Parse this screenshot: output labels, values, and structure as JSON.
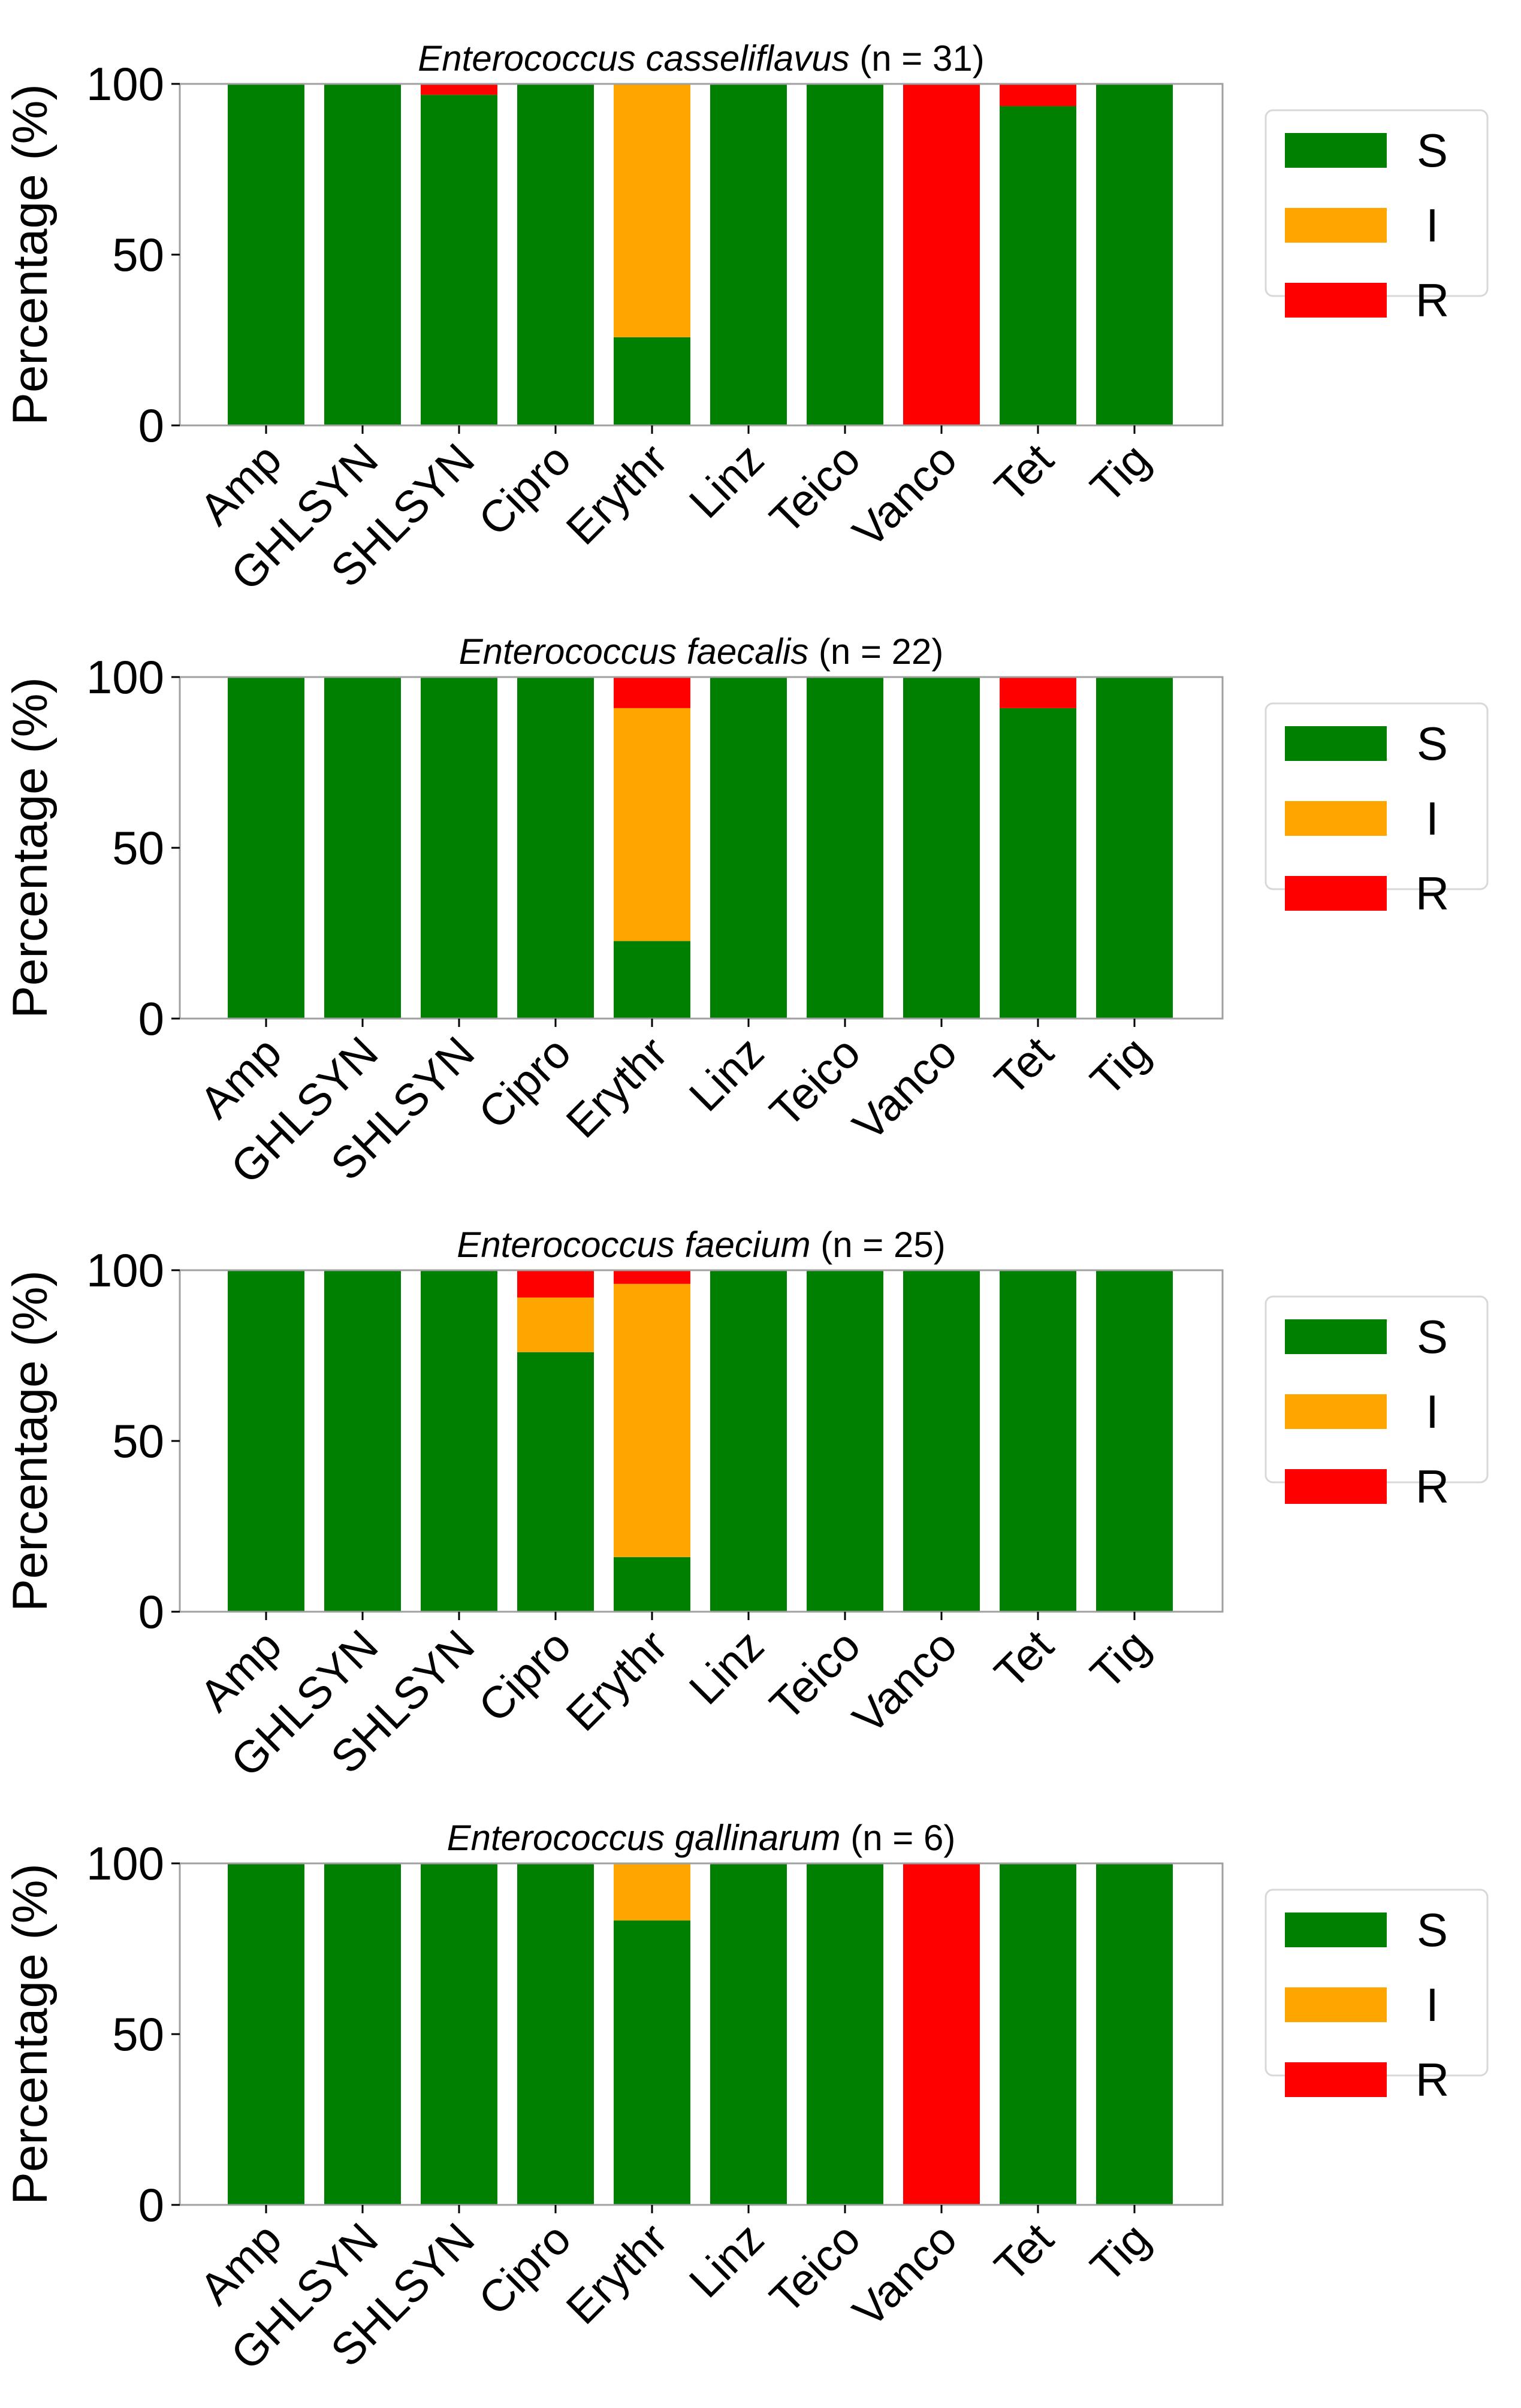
{
  "chart_data": [
    {
      "type": "stacked-bar",
      "title_species": "Enterococcus casseliflavus",
      "title_count": "(n = 31)",
      "ylabel": "Percentage (%)",
      "xlabel": "",
      "ylim": [
        0,
        100
      ],
      "yticks": [
        "0",
        "50",
        "100"
      ],
      "grid": false,
      "legend_position": "right",
      "legend": [
        {
          "label": "S",
          "color": "#008000"
        },
        {
          "label": "I",
          "color": "#ffa500"
        },
        {
          "label": "R",
          "color": "#ff0000"
        }
      ],
      "categories": [
        "Amp",
        "GHLSYN",
        "SHLSYN",
        "Cipro",
        "Erythr",
        "Linz",
        "Teico",
        "Vanco",
        "Tet",
        "Tig"
      ],
      "series": [
        {
          "name": "S",
          "values": [
            100,
            100,
            96.8,
            100,
            25.8,
            100,
            100,
            0,
            93.5,
            100
          ]
        },
        {
          "name": "I",
          "values": [
            0,
            0,
            0,
            0,
            74.2,
            0,
            0,
            0,
            0,
            0
          ]
        },
        {
          "name": "R",
          "values": [
            0,
            0,
            3.2,
            0,
            0,
            0,
            0,
            100,
            6.5,
            0
          ]
        }
      ]
    },
    {
      "type": "stacked-bar",
      "title_species": "Enterococcus faecalis",
      "title_count": "(n = 22)",
      "ylabel": "Percentage (%)",
      "xlabel": "",
      "ylim": [
        0,
        100
      ],
      "yticks": [
        "0",
        "50",
        "100"
      ],
      "grid": false,
      "legend_position": "right",
      "legend": [
        {
          "label": "S",
          "color": "#008000"
        },
        {
          "label": "I",
          "color": "#ffa500"
        },
        {
          "label": "R",
          "color": "#ff0000"
        }
      ],
      "categories": [
        "Amp",
        "GHLSYN",
        "SHLSYN",
        "Cipro",
        "Erythr",
        "Linz",
        "Teico",
        "Vanco",
        "Tet",
        "Tig"
      ],
      "series": [
        {
          "name": "S",
          "values": [
            100,
            100,
            100,
            100,
            22.7,
            100,
            100,
            100,
            90.9,
            100
          ]
        },
        {
          "name": "I",
          "values": [
            0,
            0,
            0,
            0,
            68.2,
            0,
            0,
            0,
            0,
            0
          ]
        },
        {
          "name": "R",
          "values": [
            0,
            0,
            0,
            0,
            9.1,
            0,
            0,
            0,
            9.1,
            0
          ]
        }
      ]
    },
    {
      "type": "stacked-bar",
      "title_species": "Enterococcus faecium",
      "title_count": "(n = 25)",
      "ylabel": "Percentage (%)",
      "xlabel": "",
      "ylim": [
        0,
        100
      ],
      "yticks": [
        "0",
        "50",
        "100"
      ],
      "grid": false,
      "legend_position": "right",
      "legend": [
        {
          "label": "S",
          "color": "#008000"
        },
        {
          "label": "I",
          "color": "#ffa500"
        },
        {
          "label": "R",
          "color": "#ff0000"
        }
      ],
      "categories": [
        "Amp",
        "GHLSYN",
        "SHLSYN",
        "Cipro",
        "Erythr",
        "Linz",
        "Teico",
        "Vanco",
        "Tet",
        "Tig"
      ],
      "series": [
        {
          "name": "S",
          "values": [
            100,
            100,
            100,
            76,
            16,
            100,
            100,
            100,
            100,
            100
          ]
        },
        {
          "name": "I",
          "values": [
            0,
            0,
            0,
            16,
            80,
            0,
            0,
            0,
            0,
            0
          ]
        },
        {
          "name": "R",
          "values": [
            0,
            0,
            0,
            8,
            4,
            0,
            0,
            0,
            0,
            0
          ]
        }
      ]
    },
    {
      "type": "stacked-bar",
      "title_species": "Enterococcus gallinarum",
      "title_count": "(n = 6)",
      "ylabel": "Percentage (%)",
      "xlabel": "",
      "ylim": [
        0,
        100
      ],
      "yticks": [
        "0",
        "50",
        "100"
      ],
      "grid": false,
      "legend_position": "right",
      "legend": [
        {
          "label": "S",
          "color": "#008000"
        },
        {
          "label": "I",
          "color": "#ffa500"
        },
        {
          "label": "R",
          "color": "#ff0000"
        }
      ],
      "categories": [
        "Amp",
        "GHLSYN",
        "SHLSYN",
        "Cipro",
        "Erythr",
        "Linz",
        "Teico",
        "Vanco",
        "Tet",
        "Tig"
      ],
      "series": [
        {
          "name": "S",
          "values": [
            100,
            100,
            100,
            100,
            83.3,
            100,
            100,
            0,
            100,
            100
          ]
        },
        {
          "name": "I",
          "values": [
            0,
            0,
            0,
            0,
            16.7,
            0,
            0,
            0,
            0,
            0
          ]
        },
        {
          "name": "R",
          "values": [
            0,
            0,
            0,
            0,
            0,
            0,
            0,
            100,
            0,
            0
          ]
        }
      ]
    }
  ]
}
